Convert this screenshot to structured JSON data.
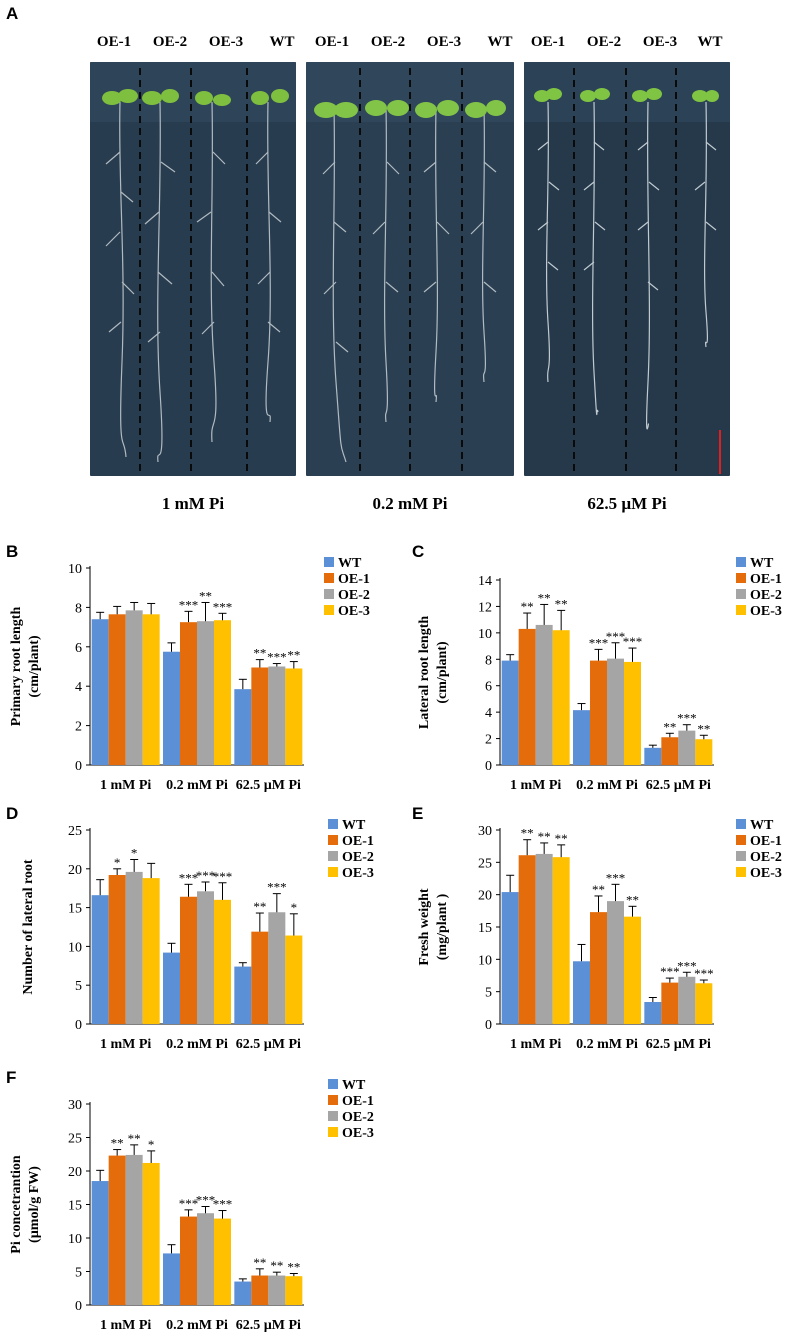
{
  "panel_a": {
    "letter": "A",
    "lane_labels": [
      "OE-1",
      "OE-2",
      "OE-3",
      "WT"
    ],
    "conditions": [
      "1 mM Pi",
      "0.2 mM Pi",
      "62.5 µM Pi"
    ]
  },
  "colors": {
    "WT": "#5b8fd6",
    "OE-1": "#e46c0a",
    "OE-2": "#a5a5a5",
    "OE-3": "#ffc000",
    "scale_bar": "#e02020"
  },
  "chart_data": [
    {
      "panel": "B",
      "type": "bar",
      "categories": [
        "1 mM Pi",
        "0.2 mM Pi",
        "62.5 µM Pi"
      ],
      "series": [
        {
          "name": "WT",
          "values": [
            7.4,
            5.75,
            3.85
          ],
          "errors": [
            0.35,
            0.45,
            0.5
          ],
          "sig": [
            "",
            "",
            ""
          ]
        },
        {
          "name": "OE-1",
          "values": [
            7.65,
            7.25,
            4.95
          ],
          "errors": [
            0.4,
            0.55,
            0.4
          ],
          "sig": [
            "",
            "***",
            "**"
          ]
        },
        {
          "name": "OE-2",
          "values": [
            7.85,
            7.3,
            5.0
          ],
          "errors": [
            0.4,
            0.95,
            0.15
          ],
          "sig": [
            "",
            "**",
            "***"
          ]
        },
        {
          "name": "OE-3",
          "values": [
            7.65,
            7.35,
            4.9
          ],
          "errors": [
            0.55,
            0.35,
            0.35
          ],
          "sig": [
            "",
            "***",
            "**"
          ]
        }
      ],
      "ylabel_lines": [
        "Primary root length",
        "(cm/plant)"
      ],
      "ylim": [
        0,
        10
      ],
      "yticks": [
        0,
        2,
        4,
        6,
        8,
        10
      ]
    },
    {
      "panel": "C",
      "type": "bar",
      "categories": [
        "1 mM Pi",
        "0.2 mM Pi",
        "62.5 µM Pi"
      ],
      "series": [
        {
          "name": "WT",
          "values": [
            7.9,
            4.15,
            1.3
          ],
          "errors": [
            0.45,
            0.5,
            0.2
          ],
          "sig": [
            "",
            "",
            ""
          ]
        },
        {
          "name": "OE-1",
          "values": [
            10.3,
            7.9,
            2.1
          ],
          "errors": [
            1.2,
            0.85,
            0.3
          ],
          "sig": [
            "**",
            "***",
            "**"
          ]
        },
        {
          "name": "OE-2",
          "values": [
            10.6,
            8.05,
            2.6
          ],
          "errors": [
            1.55,
            1.2,
            0.45
          ],
          "sig": [
            "**",
            "***",
            "***"
          ]
        },
        {
          "name": "OE-3",
          "values": [
            10.2,
            7.8,
            1.95
          ],
          "errors": [
            1.5,
            1.05,
            0.3
          ],
          "sig": [
            "**",
            "***",
            "**"
          ]
        }
      ],
      "ylabel_lines": [
        "Lateral root length",
        "(cm/plant)"
      ],
      "ylim": [
        0,
        14
      ],
      "yticks": [
        0,
        2,
        4,
        6,
        8,
        10,
        12,
        14
      ]
    },
    {
      "panel": "D",
      "type": "bar",
      "categories": [
        "1 mM Pi",
        "0.2 mM Pi",
        "62.5 µM Pi"
      ],
      "series": [
        {
          "name": "WT",
          "values": [
            16.6,
            9.2,
            7.4
          ],
          "errors": [
            2.0,
            1.2,
            0.5
          ],
          "sig": [
            "",
            "",
            ""
          ]
        },
        {
          "name": "OE-1",
          "values": [
            19.2,
            16.4,
            11.9
          ],
          "errors": [
            0.8,
            1.6,
            2.4
          ],
          "sig": [
            "*",
            "***",
            "**"
          ]
        },
        {
          "name": "OE-2",
          "values": [
            19.6,
            17.1,
            14.4
          ],
          "errors": [
            1.6,
            1.2,
            2.4
          ],
          "sig": [
            "*",
            "***",
            "***"
          ]
        },
        {
          "name": "OE-3",
          "values": [
            18.8,
            16.0,
            11.4
          ],
          "errors": [
            1.9,
            2.2,
            2.8
          ],
          "sig": [
            "",
            "***",
            "*"
          ]
        }
      ],
      "ylabel_lines": [
        "Number of lateral root"
      ],
      "ylim": [
        0,
        25
      ],
      "yticks": [
        0,
        5,
        10,
        15,
        20,
        25
      ]
    },
    {
      "panel": "E",
      "type": "bar",
      "categories": [
        "1 mM Pi",
        "0.2 mM Pi",
        "62.5 µM Pi"
      ],
      "series": [
        {
          "name": "WT",
          "values": [
            20.4,
            9.7,
            3.4
          ],
          "errors": [
            2.6,
            2.6,
            0.7
          ],
          "sig": [
            "",
            "",
            ""
          ]
        },
        {
          "name": "OE-1",
          "values": [
            26.1,
            17.3,
            6.4
          ],
          "errors": [
            2.4,
            2.5,
            0.7
          ],
          "sig": [
            "**",
            "**",
            "***"
          ]
        },
        {
          "name": "OE-2",
          "values": [
            26.3,
            19.0,
            7.3
          ],
          "errors": [
            1.7,
            2.6,
            0.7
          ],
          "sig": [
            "**",
            "***",
            "***"
          ]
        },
        {
          "name": "OE-3",
          "values": [
            25.8,
            16.6,
            6.3
          ],
          "errors": [
            1.9,
            1.6,
            0.5
          ],
          "sig": [
            "**",
            "**",
            "***"
          ]
        }
      ],
      "ylabel_lines": [
        "Fresh weight",
        "(mg/plant )"
      ],
      "ylim": [
        0,
        30
      ],
      "yticks": [
        0,
        5,
        10,
        15,
        20,
        25,
        30
      ]
    },
    {
      "panel": "F",
      "type": "bar",
      "categories": [
        "1 mM Pi",
        "0.2 mM Pi",
        "62.5 µM Pi"
      ],
      "series": [
        {
          "name": "WT",
          "values": [
            18.5,
            7.7,
            3.5
          ],
          "errors": [
            1.6,
            1.3,
            0.4
          ],
          "sig": [
            "",
            "",
            ""
          ]
        },
        {
          "name": "OE-1",
          "values": [
            22.3,
            13.2,
            4.4
          ],
          "errors": [
            0.9,
            1.0,
            1.0
          ],
          "sig": [
            "**",
            "***",
            "**"
          ]
        },
        {
          "name": "OE-2",
          "values": [
            22.4,
            13.7,
            4.4
          ],
          "errors": [
            1.5,
            1.0,
            0.5
          ],
          "sig": [
            "**",
            "***",
            "**"
          ]
        },
        {
          "name": "OE-3",
          "values": [
            21.2,
            12.9,
            4.3
          ],
          "errors": [
            1.8,
            1.2,
            0.4
          ],
          "sig": [
            "*",
            "***",
            "**"
          ]
        }
      ],
      "ylabel_lines": [
        "Pi concetrantion",
        "(µmol/g FW)"
      ],
      "ylim": [
        0,
        30
      ],
      "yticks": [
        0,
        5,
        10,
        15,
        20,
        25,
        30
      ]
    }
  ]
}
